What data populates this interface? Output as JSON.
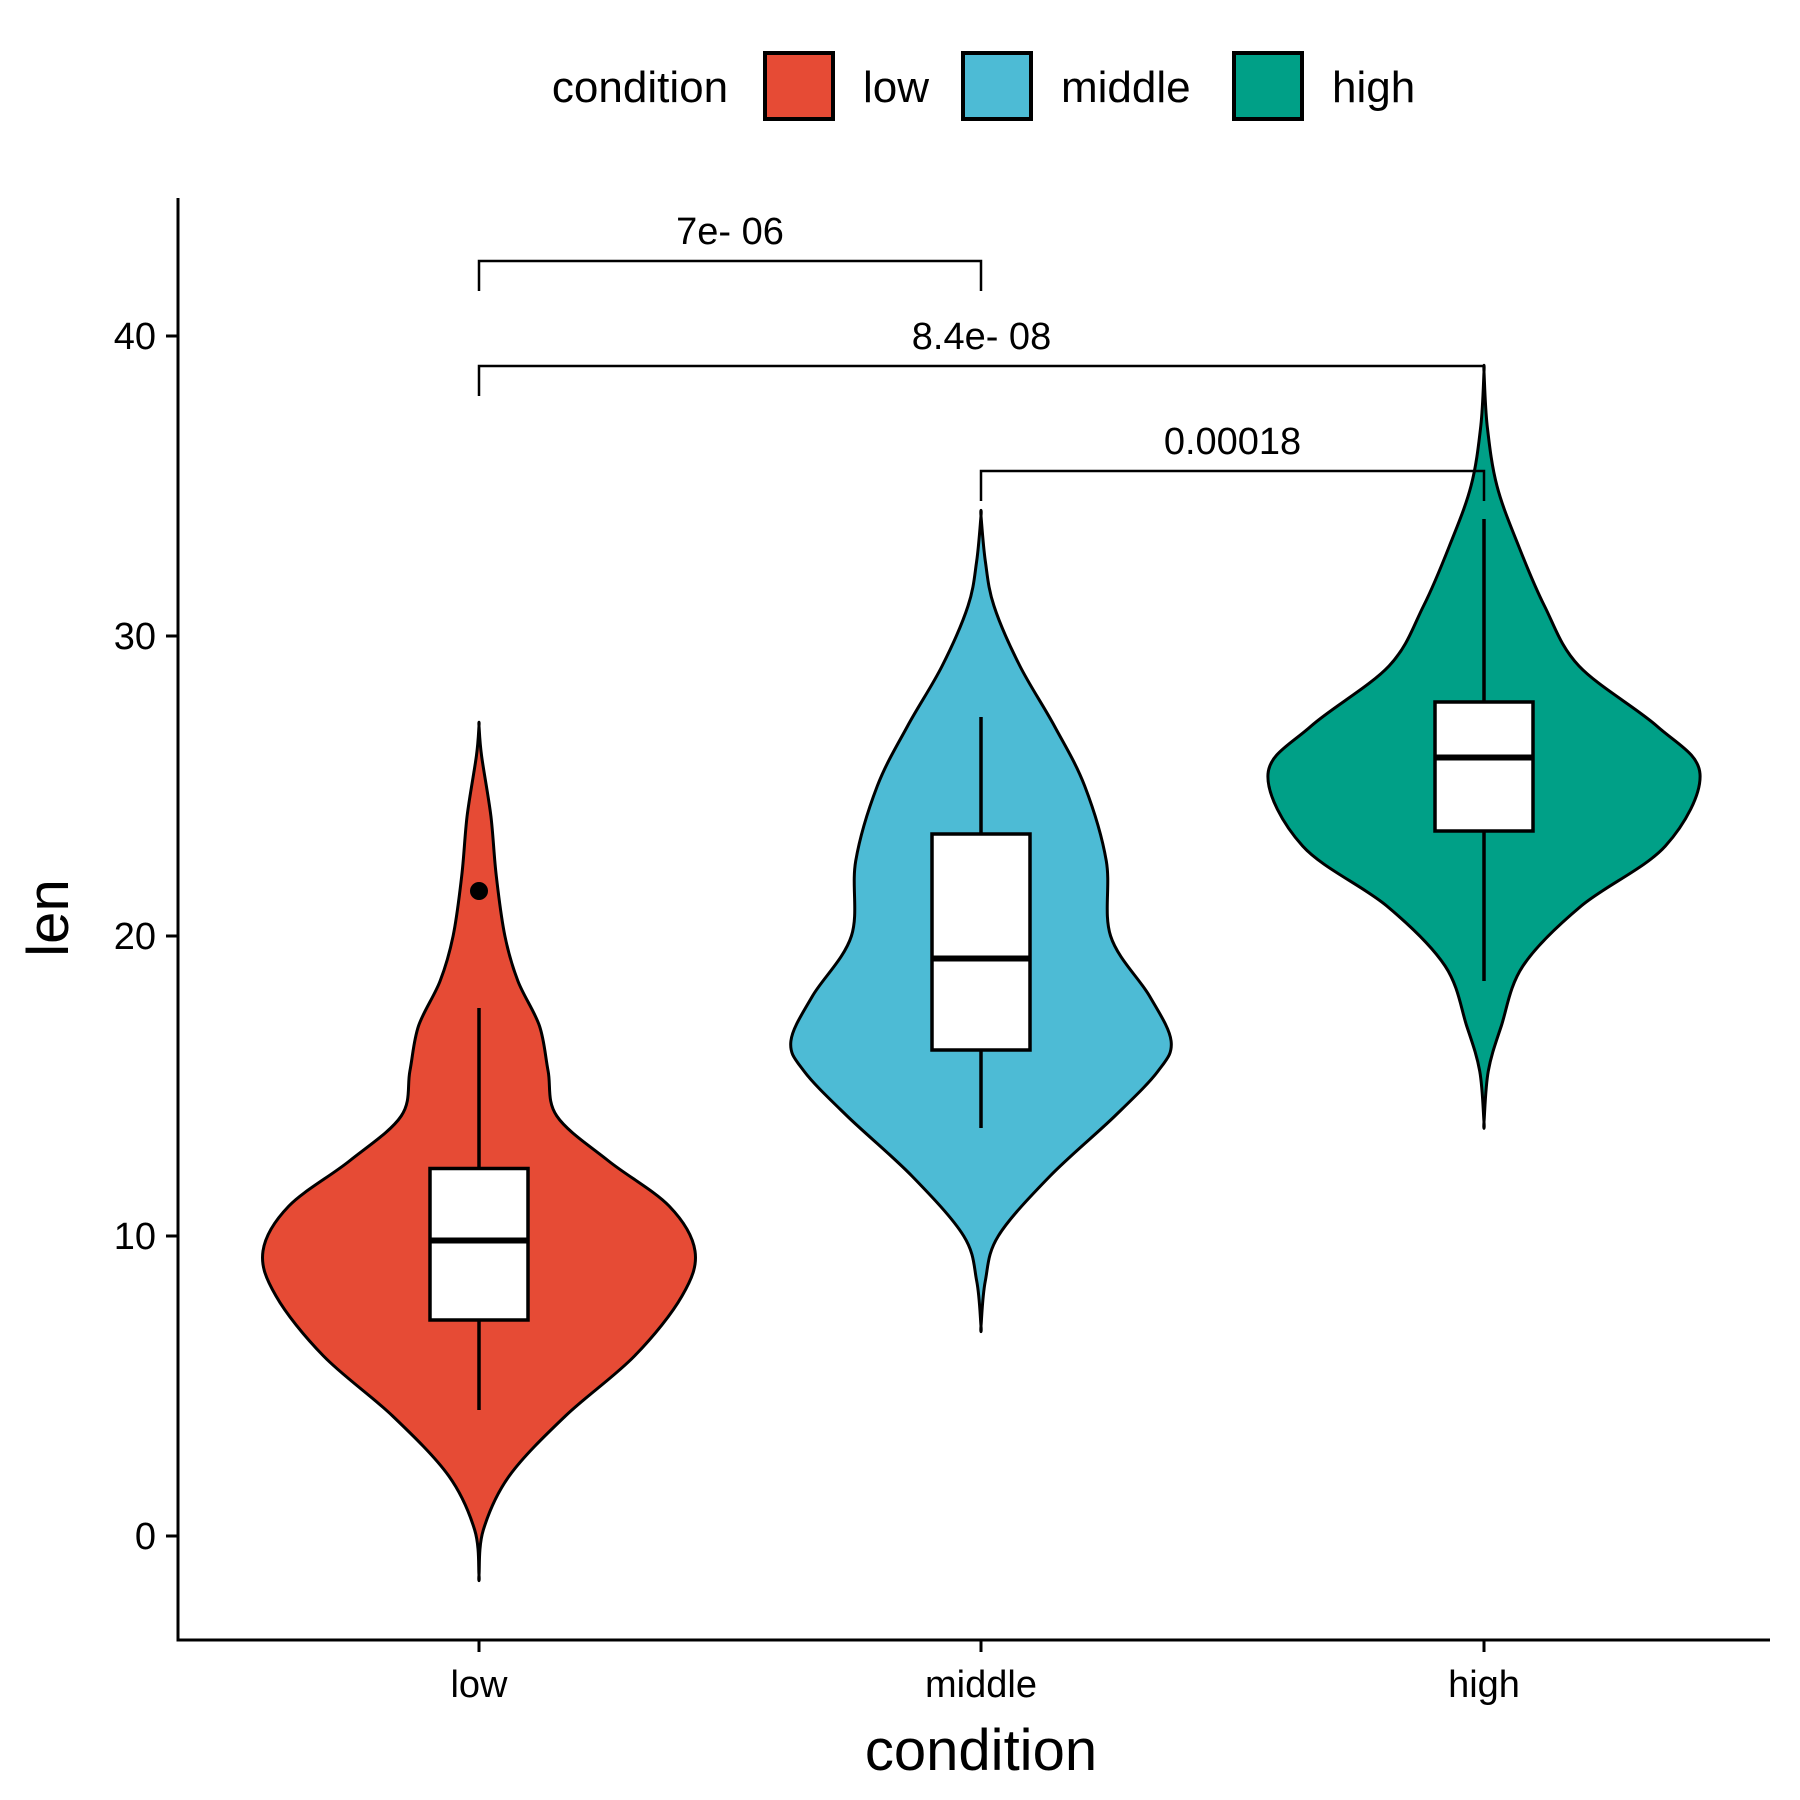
{
  "chart_data": {
    "type": "violin",
    "title": "",
    "xlabel": "condition",
    "ylabel": "len",
    "ylim": [
      -3.5,
      44.5
    ],
    "yticks": [
      0,
      10,
      20,
      30,
      40
    ],
    "ytick_labels": [
      "0",
      "10",
      "20",
      "30",
      "40"
    ],
    "categories": [
      "low",
      "middle",
      "high"
    ],
    "legend": {
      "title": "condition",
      "position": "top",
      "entries": [
        {
          "label": "low",
          "color": "#E64B35"
        },
        {
          "label": "middle",
          "color": "#4DBBD5"
        },
        {
          "label": "high",
          "color": "#00A087"
        }
      ]
    },
    "series": [
      {
        "name": "low",
        "color": "#E64B35",
        "violin": {
          "y_range": [
            -1.3,
            27.0
          ],
          "profile": [
            {
              "y": -1.3,
              "w": 0.0
            },
            {
              "y": 0.2,
              "w": 0.02
            },
            {
              "y": 2.0,
              "w": 0.14
            },
            {
              "y": 4.0,
              "w": 0.4
            },
            {
              "y": 6.0,
              "w": 0.72
            },
            {
              "y": 8.0,
              "w": 0.94
            },
            {
              "y": 9.5,
              "w": 1.0
            },
            {
              "y": 11.0,
              "w": 0.88
            },
            {
              "y": 12.5,
              "w": 0.6
            },
            {
              "y": 14.0,
              "w": 0.36
            },
            {
              "y": 15.5,
              "w": 0.32
            },
            {
              "y": 17.0,
              "w": 0.28
            },
            {
              "y": 18.5,
              "w": 0.18
            },
            {
              "y": 20.0,
              "w": 0.12
            },
            {
              "y": 22.0,
              "w": 0.08
            },
            {
              "y": 24.0,
              "w": 0.055
            },
            {
              "y": 26.0,
              "w": 0.012
            },
            {
              "y": 27.0,
              "w": 0.0
            }
          ]
        },
        "box": {
          "whisker_low": 4.2,
          "q1": 7.2,
          "median": 9.85,
          "q3": 12.25,
          "whisker_high": 17.6,
          "outliers": [
            21.5
          ]
        }
      },
      {
        "name": "middle",
        "color": "#4DBBD5",
        "violin": {
          "y_range": [
            7.0,
            34.0
          ],
          "profile": [
            {
              "y": 7.0,
              "w": 0.0
            },
            {
              "y": 8.5,
              "w": 0.02
            },
            {
              "y": 10.0,
              "w": 0.08
            },
            {
              "y": 12.0,
              "w": 0.32
            },
            {
              "y": 14.0,
              "w": 0.62
            },
            {
              "y": 15.5,
              "w": 0.82
            },
            {
              "y": 16.5,
              "w": 0.88
            },
            {
              "y": 18.0,
              "w": 0.78
            },
            {
              "y": 20.0,
              "w": 0.6
            },
            {
              "y": 22.5,
              "w": 0.58
            },
            {
              "y": 25.0,
              "w": 0.48
            },
            {
              "y": 27.0,
              "w": 0.34
            },
            {
              "y": 29.0,
              "w": 0.18
            },
            {
              "y": 31.0,
              "w": 0.06
            },
            {
              "y": 32.5,
              "w": 0.02
            },
            {
              "y": 34.0,
              "w": 0.0
            }
          ]
        },
        "box": {
          "whisker_low": 13.6,
          "q1": 16.2,
          "median": 19.25,
          "q3": 23.4,
          "whisker_high": 27.3,
          "outliers": []
        }
      },
      {
        "name": "high",
        "color": "#00A087",
        "violin": {
          "y_range": [
            13.8,
            38.8
          ],
          "profile": [
            {
              "y": 13.8,
              "w": 0.0
            },
            {
              "y": 15.5,
              "w": 0.02
            },
            {
              "y": 17.0,
              "w": 0.08
            },
            {
              "y": 19.0,
              "w": 0.18
            },
            {
              "y": 21.0,
              "w": 0.45
            },
            {
              "y": 23.0,
              "w": 0.84
            },
            {
              "y": 25.4,
              "w": 1.0
            },
            {
              "y": 27.0,
              "w": 0.8
            },
            {
              "y": 29.0,
              "w": 0.44
            },
            {
              "y": 31.0,
              "w": 0.28
            },
            {
              "y": 33.0,
              "w": 0.16
            },
            {
              "y": 35.0,
              "w": 0.06
            },
            {
              "y": 37.0,
              "w": 0.015
            },
            {
              "y": 38.8,
              "w": 0.0
            }
          ]
        },
        "box": {
          "whisker_low": 18.5,
          "q1": 23.5,
          "median": 25.95,
          "q3": 27.8,
          "whisker_high": 33.9,
          "outliers": []
        }
      }
    ],
    "comparisons": [
      {
        "from": "low",
        "to": "middle",
        "label": "7e- 06",
        "y": 42.5,
        "tip_y": 41.5
      },
      {
        "from": "low",
        "to": "high",
        "label": "8.4e- 08",
        "y": 39.0,
        "tip_y": 38.0
      },
      {
        "from": "middle",
        "to": "high",
        "label": "0.00018",
        "y": 35.5,
        "tip_y": 34.5
      }
    ]
  }
}
